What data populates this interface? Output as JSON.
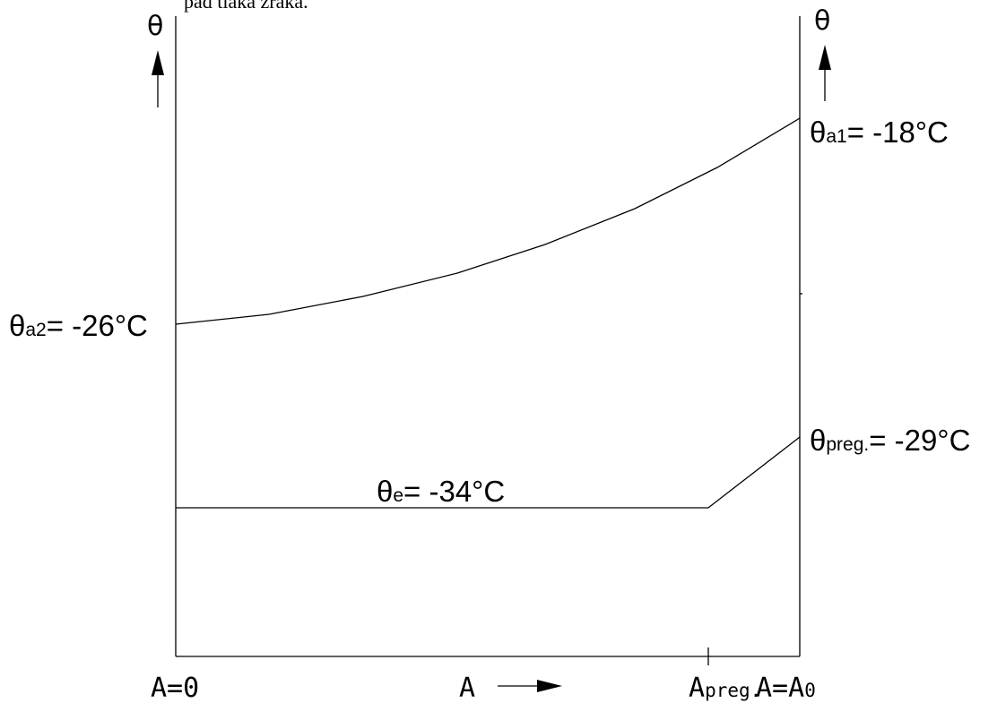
{
  "header_fragment": "pad tlaka zraka.",
  "axes": {
    "y_symbol": "θ",
    "x_symbol": "A"
  },
  "x_ticks": {
    "start": "A=0",
    "preg_main": "A",
    "preg_sub": "preg.",
    "end_main": "A=A",
    "end_sub": "0"
  },
  "labels": {
    "air_out": {
      "symbol": "θ",
      "sub": "a2",
      "value": "= -26°C"
    },
    "air_in": {
      "symbol": "θ",
      "sub": "a1",
      "value": "= -18°C"
    },
    "evap": {
      "symbol": "θ",
      "sub": "e",
      "value": "= -34°C"
    },
    "superheat": {
      "symbol": "θ",
      "sub": "preg.",
      "value": "= -29°C"
    }
  },
  "curves": {
    "air_temperature_values_C": [
      -26,
      -18
    ],
    "refrigerant_evaporation_C": -34,
    "refrigerant_superheat_outlet_C": -29
  }
}
